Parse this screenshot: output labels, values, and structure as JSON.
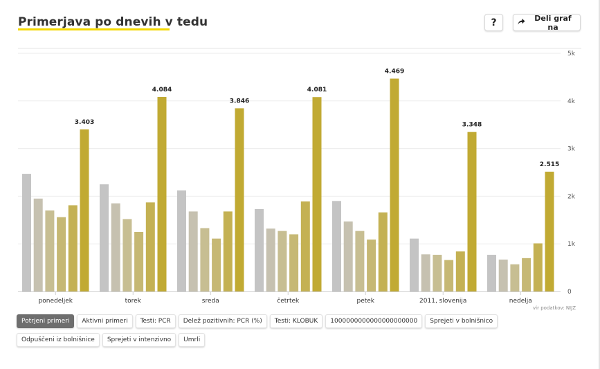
{
  "header": {
    "title": "Primerjava po dnevih v tedu",
    "help_label": "?",
    "share_label": "Deli graf na",
    "share_icon": "share-arrow-icon"
  },
  "source_label": "vir podatkov: NIJZ",
  "colors": {
    "title_underline": "#f4d800",
    "series": [
      "#c4c4c4",
      "#c6c1b0",
      "#c7be92",
      "#c6b874",
      "#c4b153",
      "#c1aa33"
    ],
    "grid": "#ebebeb",
    "active_tab_bg": "#6e6e6e"
  },
  "chart_data": {
    "type": "bar",
    "categories": [
      "ponedeljek",
      "torek",
      "sreda",
      "četrtek",
      "petek",
      "2011, slovenija",
      "nedelja"
    ],
    "series": [
      {
        "values": [
          2470,
          2250,
          2120,
          1730,
          1900,
          1110,
          770
        ]
      },
      {
        "values": [
          1950,
          1850,
          1680,
          1320,
          1470,
          780,
          670
        ]
      },
      {
        "values": [
          1700,
          1520,
          1330,
          1270,
          1270,
          770,
          570
        ]
      },
      {
        "values": [
          1560,
          1250,
          1110,
          1200,
          1090,
          660,
          700
        ]
      },
      {
        "values": [
          1810,
          1870,
          1680,
          1890,
          1660,
          840,
          1010
        ]
      },
      {
        "values": [
          3403,
          4084,
          3846,
          4081,
          4469,
          3348,
          2515
        ]
      }
    ],
    "data_labels": [
      "3.403",
      "4.084",
      "3.846",
      "4.081",
      "4.469",
      "3.348",
      "2.515"
    ],
    "y_ticks": [
      0,
      1000,
      2000,
      3000,
      4000,
      5000
    ],
    "y_tick_labels": [
      "0",
      "1k",
      "2k",
      "3k",
      "4k",
      "5k"
    ],
    "ylim": [
      0,
      5000
    ],
    "yaxis_side": "right",
    "grid": true,
    "legend": "none"
  },
  "tabs": [
    {
      "label": "Potrjeni primeri",
      "active": true
    },
    {
      "label": "Aktivni primeri",
      "active": false
    },
    {
      "label": "Testi: PCR",
      "active": false
    },
    {
      "label": "Delež pozitivnih: PCR (%)",
      "active": false
    },
    {
      "label": "Testi: KLOBUK",
      "active": false
    },
    {
      "label": "1000000000000000000000",
      "active": false
    },
    {
      "label": "Sprejeti v bolnišnico",
      "active": false
    },
    {
      "label": "Odpuščeni iz bolnišnice",
      "active": false
    },
    {
      "label": "Sprejeti v intenzivno",
      "active": false
    },
    {
      "label": "Umrli",
      "active": false
    }
  ]
}
